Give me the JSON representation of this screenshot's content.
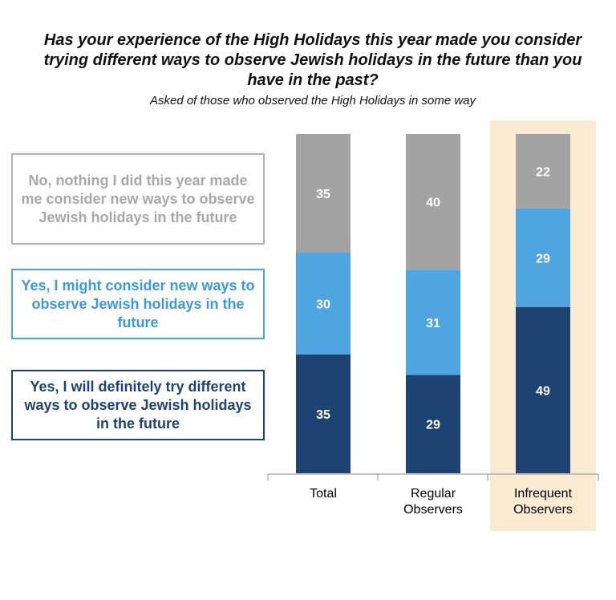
{
  "page_heading_fragment": "",
  "chart_data": {
    "type": "bar",
    "stacked": true,
    "title": "Has your experience of the High Holidays this year made you consider trying different ways to observe Jewish holidays in the future than you have in the past?",
    "subtitle": "Asked of those who observed the High Holidays in some way",
    "categories": [
      "Total",
      "Regular Observers",
      "Infrequent Observers"
    ],
    "highlighted_category": "Infrequent Observers",
    "series": [
      {
        "name": "Yes, I will definitely try different ways to observe Jewish holidays in the future",
        "color": "#1d4373",
        "values": [
          35,
          29,
          49
        ]
      },
      {
        "name": "Yes, I might consider new ways to observe Jewish holidays in the future",
        "color": "#4ea5e0",
        "values": [
          30,
          31,
          29
        ]
      },
      {
        "name": "No, nothing I did this year made me consider new ways to observe Jewish holidays in the future",
        "color": "#a3a3a3",
        "values": [
          35,
          40,
          22
        ]
      }
    ],
    "ylim": [
      0,
      100
    ],
    "grid": false,
    "legend_placement": "left",
    "highlight_color": "#fbebd3",
    "label_color": "#ffffff"
  }
}
